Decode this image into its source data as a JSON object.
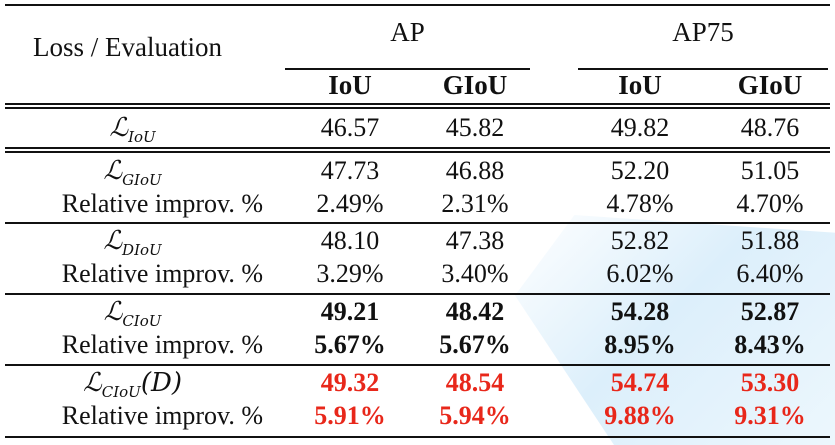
{
  "header": {
    "corner_label": "Loss / Evaluation",
    "group_ap": "AP",
    "group_ap75": "AP75",
    "sub_iou_1": "IoU",
    "sub_giou_1": "GIoU",
    "sub_iou_2": "IoU",
    "sub_giou_2": "GIoU"
  },
  "rows": {
    "liou": {
      "loss_symbol": "ℒ",
      "loss_sub": "IoU",
      "values": [
        "46.57",
        "45.82",
        "49.82",
        "48.76"
      ]
    },
    "lgiou": {
      "loss_symbol": "ℒ",
      "loss_sub": "GIoU",
      "values": [
        "47.73",
        "46.88",
        "52.20",
        "51.05"
      ],
      "improv_label": "Relative improv. %",
      "improv": [
        "2.49%",
        "2.31%",
        "4.78%",
        "4.70%"
      ]
    },
    "ldiou": {
      "loss_symbol": "ℒ",
      "loss_sub": "DIoU",
      "values": [
        "48.10",
        "47.38",
        "52.82",
        "51.88"
      ],
      "improv_label": "Relative improv. %",
      "improv": [
        "3.29%",
        "3.40%",
        "6.02%",
        "6.40%"
      ]
    },
    "lciou": {
      "loss_symbol": "ℒ",
      "loss_sub": "CIoU",
      "values": [
        "49.21",
        "48.42",
        "54.28",
        "52.87"
      ],
      "improv_label": "Relative improv. %",
      "improv": [
        "5.67%",
        "5.67%",
        "8.95%",
        "8.43%"
      ]
    },
    "lciou_d": {
      "loss_symbol": "ℒ",
      "loss_sub": "CIoU",
      "loss_suffix": "(D)",
      "values": [
        "49.32",
        "48.54",
        "54.74",
        "53.30"
      ],
      "improv_label": "Relative improv. %",
      "improv": [
        "5.91%",
        "5.94%",
        "9.88%",
        "9.31%"
      ]
    }
  },
  "colors": {
    "text": "#111111",
    "highlight_red": "#e8271a",
    "watermark_blue": "#d6ecfa"
  }
}
